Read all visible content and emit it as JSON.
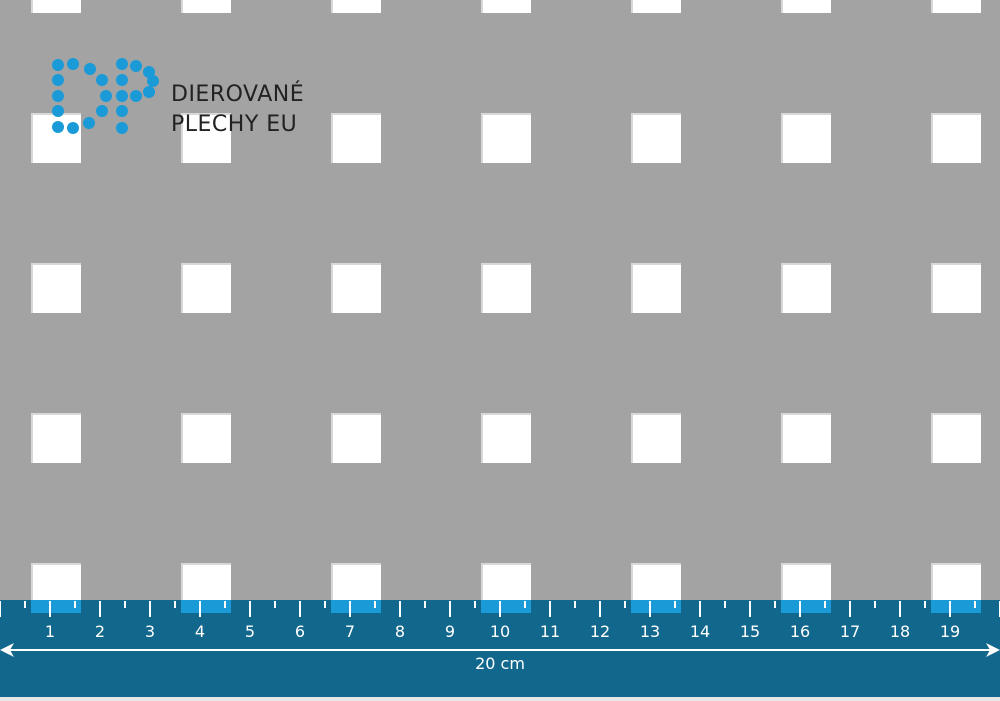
{
  "brand": {
    "line1": "DIEROVANÉ",
    "line2": "PLECHY EU",
    "logo_letters": "DP",
    "logo_color": "#1a9ad6"
  },
  "sheet": {
    "color": "#a3a3a3",
    "hole_shape": "square",
    "hole_color": "#ffffff"
  },
  "ruler": {
    "color": "#12678d",
    "highlight_color": "#1a9ad6",
    "labels": [
      "1",
      "2",
      "3",
      "4",
      "5",
      "6",
      "7",
      "8",
      "9",
      "10",
      "11",
      "12",
      "13",
      "14",
      "15",
      "16",
      "17",
      "18",
      "19"
    ],
    "length_label": "20 cm"
  }
}
